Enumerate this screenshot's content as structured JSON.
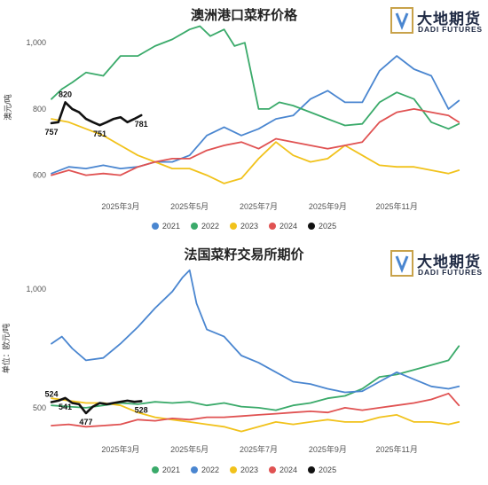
{
  "brand": {
    "cn": "大地期货",
    "en": "DADI FUTURES"
  },
  "chart_data": [
    {
      "type": "line",
      "title": "澳洲港口菜籽价格",
      "ylabel": "澳元/吨",
      "xlabel": "",
      "ylim": [
        540,
        1070
      ],
      "y_ticks": [
        {
          "v": 600,
          "t": "600"
        },
        {
          "v": 800,
          "t": "800"
        },
        {
          "v": 1000,
          "t": "1,000"
        }
      ],
      "x_ticks": [
        {
          "v": 3,
          "t": "2025年3月"
        },
        {
          "v": 5,
          "t": "2025年5月"
        },
        {
          "v": 7,
          "t": "2025年7月"
        },
        {
          "v": 9,
          "t": "2025年9月"
        },
        {
          "v": 11,
          "t": "2025年11月"
        }
      ],
      "xlim": [
        1,
        13
      ],
      "legend_position": "bottom",
      "series": [
        {
          "name": "2021",
          "color": "#4a86d0",
          "x": [
            1.0,
            1.5,
            2.0,
            2.5,
            3.0,
            3.5,
            4.0,
            4.5,
            5.0,
            5.5,
            6.0,
            6.5,
            7.0,
            7.5,
            8.0,
            8.5,
            9.0,
            9.5,
            10.0,
            10.5,
            11.0,
            11.5,
            12.0,
            12.5,
            12.8
          ],
          "values": [
            605,
            625,
            620,
            630,
            620,
            625,
            640,
            640,
            660,
            720,
            745,
            720,
            740,
            770,
            780,
            830,
            855,
            820,
            820,
            915,
            960,
            920,
            900,
            800,
            825
          ]
        },
        {
          "name": "2022",
          "color": "#3aaa6a",
          "x": [
            1.0,
            1.3,
            1.6,
            2.0,
            2.5,
            3.0,
            3.5,
            4.0,
            4.5,
            5.0,
            5.3,
            5.6,
            6.0,
            6.3,
            6.6,
            7.0,
            7.3,
            7.6,
            8.0,
            8.5,
            9.0,
            9.5,
            10.0,
            10.5,
            11.0,
            11.5,
            12.0,
            12.5,
            12.8
          ],
          "values": [
            830,
            860,
            880,
            910,
            900,
            960,
            960,
            990,
            1010,
            1040,
            1050,
            1020,
            1040,
            990,
            1000,
            800,
            800,
            820,
            810,
            790,
            770,
            750,
            755,
            820,
            850,
            830,
            760,
            740,
            755
          ]
        },
        {
          "name": "2023",
          "color": "#f1c21b",
          "x": [
            1.0,
            1.5,
            2.0,
            2.5,
            3.0,
            3.5,
            4.0,
            4.5,
            5.0,
            5.5,
            6.0,
            6.5,
            7.0,
            7.5,
            8.0,
            8.5,
            9.0,
            9.5,
            10.0,
            10.5,
            11.0,
            11.5,
            12.0,
            12.5,
            12.8
          ],
          "values": [
            770,
            760,
            740,
            720,
            690,
            660,
            640,
            620,
            620,
            600,
            575,
            590,
            650,
            700,
            660,
            640,
            650,
            690,
            660,
            630,
            625,
            625,
            615,
            605,
            615
          ]
        },
        {
          "name": "2024",
          "color": "#e05252",
          "x": [
            1.0,
            1.5,
            2.0,
            2.5,
            3.0,
            3.5,
            4.0,
            4.5,
            5.0,
            5.5,
            6.0,
            6.5,
            7.0,
            7.5,
            8.0,
            8.5,
            9.0,
            9.5,
            10.0,
            10.5,
            11.0,
            11.5,
            12.0,
            12.5,
            12.8
          ],
          "values": [
            600,
            615,
            600,
            605,
            600,
            625,
            640,
            650,
            650,
            675,
            690,
            700,
            680,
            710,
            700,
            690,
            680,
            690,
            700,
            760,
            790,
            800,
            790,
            780,
            760
          ]
        },
        {
          "name": "2025",
          "color": "#111111",
          "x": [
            1.0,
            1.2,
            1.4,
            1.6,
            1.8,
            2.0,
            2.2,
            2.4,
            2.6,
            2.8,
            3.0,
            3.2,
            3.4,
            3.6
          ],
          "values": [
            757,
            760,
            820,
            800,
            790,
            770,
            760,
            751,
            760,
            770,
            775,
            760,
            770,
            781
          ]
        }
      ],
      "annotations": [
        {
          "x": 1.0,
          "y": 757,
          "text": "757",
          "pos": "below"
        },
        {
          "x": 1.4,
          "y": 820,
          "text": "820",
          "pos": "above"
        },
        {
          "x": 2.4,
          "y": 751,
          "text": "751",
          "pos": "below"
        },
        {
          "x": 3.6,
          "y": 781,
          "text": "781",
          "pos": "below"
        }
      ]
    },
    {
      "type": "line",
      "title": "法国菜籽交易所期价",
      "ylabel": "单位：欧元/吨",
      "xlabel": "",
      "ylim": [
        380,
        1120
      ],
      "y_ticks": [
        {
          "v": 500,
          "t": "500"
        },
        {
          "v": 1000,
          "t": "1,000"
        }
      ],
      "x_ticks": [
        {
          "v": 3,
          "t": "2025年3月"
        },
        {
          "v": 5,
          "t": "2025年5月"
        },
        {
          "v": 7,
          "t": "2025年7月"
        },
        {
          "v": 9,
          "t": "2025年9月"
        },
        {
          "v": 11,
          "t": "2025年11月"
        }
      ],
      "xlim": [
        1,
        13
      ],
      "legend_position": "bottom",
      "series": [
        {
          "name": "2021",
          "color": "#3aaa6a",
          "x": [
            1.0,
            1.5,
            2.0,
            2.5,
            3.0,
            3.5,
            4.0,
            4.5,
            5.0,
            5.5,
            6.0,
            6.5,
            7.0,
            7.5,
            8.0,
            8.5,
            9.0,
            9.5,
            10.0,
            10.5,
            11.0,
            11.5,
            12.0,
            12.5,
            12.8
          ],
          "values": [
            510,
            505,
            500,
            510,
            520,
            515,
            525,
            520,
            525,
            510,
            520,
            505,
            500,
            490,
            510,
            520,
            540,
            550,
            580,
            630,
            640,
            660,
            680,
            700,
            760
          ]
        },
        {
          "name": "2022",
          "color": "#4a86d0",
          "x": [
            1.0,
            1.3,
            1.6,
            2.0,
            2.5,
            3.0,
            3.5,
            4.0,
            4.5,
            4.8,
            5.0,
            5.2,
            5.5,
            6.0,
            6.5,
            7.0,
            7.5,
            8.0,
            8.5,
            9.0,
            9.5,
            10.0,
            10.5,
            11.0,
            11.5,
            12.0,
            12.5,
            12.8
          ],
          "values": [
            770,
            800,
            750,
            700,
            710,
            770,
            840,
            920,
            990,
            1050,
            1080,
            940,
            830,
            800,
            720,
            690,
            650,
            610,
            600,
            580,
            565,
            570,
            610,
            650,
            620,
            590,
            580,
            590
          ]
        },
        {
          "name": "2023",
          "color": "#f1c21b",
          "x": [
            1.0,
            1.5,
            2.0,
            2.5,
            3.0,
            3.5,
            4.0,
            4.5,
            5.0,
            5.5,
            6.0,
            6.5,
            7.0,
            7.5,
            8.0,
            8.5,
            9.0,
            9.5,
            10.0,
            10.5,
            11.0,
            11.5,
            12.0,
            12.5,
            12.8
          ],
          "values": [
            540,
            530,
            520,
            520,
            510,
            480,
            460,
            450,
            440,
            430,
            420,
            400,
            420,
            440,
            430,
            440,
            450,
            440,
            440,
            460,
            470,
            440,
            440,
            430,
            440
          ]
        },
        {
          "name": "2024",
          "color": "#e05252",
          "x": [
            1.0,
            1.5,
            2.0,
            2.5,
            3.0,
            3.5,
            4.0,
            4.5,
            5.0,
            5.5,
            6.0,
            6.5,
            7.0,
            7.5,
            8.0,
            8.5,
            9.0,
            9.5,
            10.0,
            10.5,
            11.0,
            11.5,
            12.0,
            12.5,
            12.8
          ],
          "values": [
            425,
            430,
            420,
            425,
            430,
            450,
            445,
            455,
            450,
            460,
            460,
            465,
            470,
            475,
            480,
            485,
            480,
            500,
            490,
            500,
            510,
            520,
            535,
            560,
            510
          ]
        },
        {
          "name": "2025",
          "color": "#111111",
          "x": [
            1.0,
            1.2,
            1.4,
            1.6,
            1.8,
            2.0,
            2.2,
            2.4,
            2.6,
            2.8,
            3.0,
            3.2,
            3.4,
            3.6
          ],
          "values": [
            524,
            530,
            541,
            520,
            515,
            477,
            505,
            520,
            515,
            520,
            525,
            530,
            525,
            528
          ]
        }
      ],
      "annotations": [
        {
          "x": 1.0,
          "y": 524,
          "text": "524",
          "pos": "above"
        },
        {
          "x": 1.4,
          "y": 541,
          "text": "541",
          "pos": "below"
        },
        {
          "x": 2.0,
          "y": 477,
          "text": "477",
          "pos": "below"
        },
        {
          "x": 3.6,
          "y": 528,
          "text": "528",
          "pos": "below"
        }
      ]
    }
  ]
}
